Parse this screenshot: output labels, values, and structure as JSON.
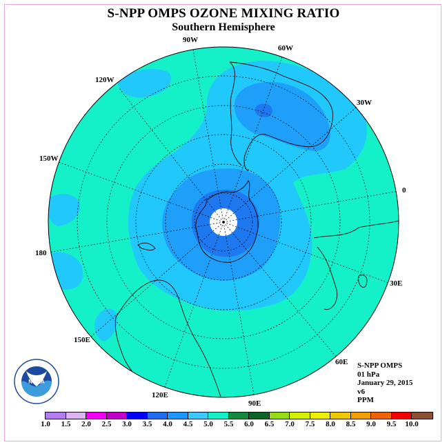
{
  "title": "S-NPP OMPS OZONE MIXING RATIO",
  "subtitle": "Southern Hemisphere",
  "longitude_labels": [
    {
      "text": "90W",
      "lon": "90W"
    },
    {
      "text": "60W",
      "lon": "60W"
    },
    {
      "text": "120W",
      "lon": "120W"
    },
    {
      "text": "30W",
      "lon": "30W"
    },
    {
      "text": "150W",
      "lon": "150W"
    },
    {
      "text": "0",
      "lon": "0"
    },
    {
      "text": "180",
      "lon": "180"
    },
    {
      "text": "30E",
      "lon": "30E"
    },
    {
      "text": "150E",
      "lon": "150E"
    },
    {
      "text": "60E",
      "lon": "60E"
    },
    {
      "text": "120E",
      "lon": "120E"
    },
    {
      "text": "90E",
      "lon": "90E"
    }
  ],
  "info": {
    "instrument": "S-NPP OMPS",
    "level": "01 hPa",
    "date": "January 29, 2015",
    "version": "v6",
    "units": "PPM"
  },
  "logo": {
    "text": "NOAA",
    "ring_text": "NATIONAL OCEANIC AND ATMOSPHERIC ADMINISTRATION · U.S. DEPARTMENT OF COMMERCE"
  },
  "colorbar": {
    "ticks": [
      "1.0",
      "1.5",
      "2.0",
      "2.5",
      "3.0",
      "3.5",
      "4.0",
      "4.5",
      "5.0",
      "5.5",
      "6.0",
      "6.5",
      "7.0",
      "7.5",
      "8.0",
      "8.5",
      "9.0",
      "9.5",
      "10.0"
    ],
    "colors": [
      "#b47cf0",
      "#dcb4f0",
      "#f000f0",
      "#c000c8",
      "#0000ff",
      "#1e6ef0",
      "#1e96ff",
      "#3cc8ff",
      "#14f0c8",
      "#148c3c",
      "#0a6428",
      "#96dc14",
      "#d2f000",
      "#f0f000",
      "#f0c800",
      "#f0a000",
      "#f06400",
      "#f00000",
      "#8c5032"
    ]
  },
  "map_colors": {
    "band_4_0_4_5": "#20c8fc",
    "band_4_5_5_0": "#14f0c8",
    "band_3_5_4_0": "#1ea0fa",
    "band_3_0_3_5": "#1e78f0",
    "pole": "#ffffff"
  }
}
